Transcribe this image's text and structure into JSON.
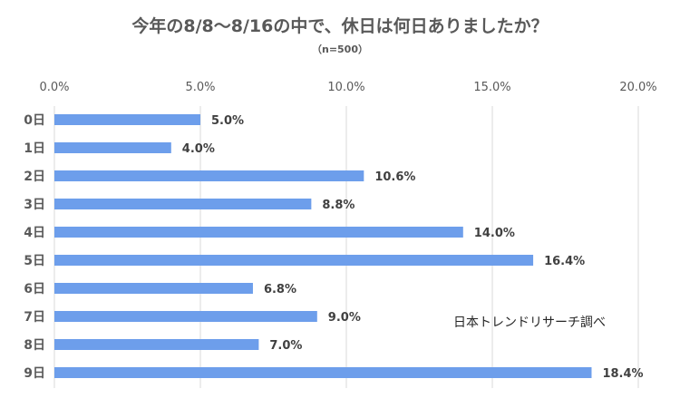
{
  "chart_data": {
    "type": "bar",
    "orientation": "horizontal",
    "title": "今年の8/8～8/16の中で、休日は何日ありましたか？",
    "subtitle": "（n=500）",
    "categories": [
      "0日",
      "1日",
      "2日",
      "3日",
      "4日",
      "5日",
      "6日",
      "7日",
      "8日",
      "9日"
    ],
    "values": [
      5.0,
      4.0,
      10.6,
      8.8,
      14.0,
      16.4,
      6.8,
      9.0,
      7.0,
      18.4
    ],
    "value_labels": [
      "5.0%",
      "4.0%",
      "10.6%",
      "8.8%",
      "14.0%",
      "16.4%",
      "6.8%",
      "9.0%",
      "7.0%",
      "18.4%"
    ],
    "xlim": [
      0,
      20
    ],
    "xticks": [
      0,
      5,
      10,
      15,
      20
    ],
    "xtick_labels": [
      "0.0%",
      "5.0%",
      "10.0%",
      "15.0%",
      "20.0%"
    ],
    "x_axis_position": "top",
    "grid": true,
    "bar_color": "#6d9eeb",
    "annotation": "日本トレンドリサーチ調べ"
  }
}
